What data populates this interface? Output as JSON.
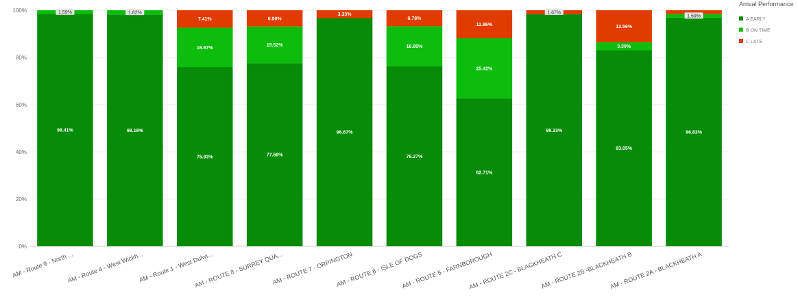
{
  "chart_data": {
    "type": "bar",
    "stacked": true,
    "percent": true,
    "categories": [
      "AM - Route 9 - North ...",
      "AM - Route 4 - West Wickh...",
      "AM - Route 1 - West Dulwi...",
      "AM - ROUTE 8 - SURREY QUA...",
      "AM - ROUTE 7 - ORPINGTON",
      "AM - ROUTE 6 - ISLE OF DOGS",
      "AM - ROUTE 5 - FARNBOROUGH",
      "AM - ROUTE 2C - BLACKHEATH C",
      "AM - ROUTE 2B -BLACKHEATH B",
      "AM - ROUTE 2A - BLACKHEATH A"
    ],
    "series": [
      {
        "name": "A EARLY",
        "color": "#078c07",
        "values": [
          98.41,
          98.18,
          75.93,
          77.59,
          96.67,
          76.27,
          62.71,
          98.33,
          83.05,
          96.83
        ],
        "labels": [
          "98.41%",
          "98.18%",
          "75.93%",
          "77.59%",
          "96.67%",
          "76.27%",
          "62.71%",
          "98.33%",
          "83.05%",
          "96.83%"
        ]
      },
      {
        "name": "B ON TIME",
        "color": "#0dbd0d",
        "values": [
          1.59,
          1.82,
          16.67,
          15.52,
          0,
          16.95,
          25.42,
          0,
          3.39,
          1.59
        ],
        "labels": [
          "1.59%",
          "1.82%",
          "16.67%",
          "15.52%",
          "",
          "16.95%",
          "25.42%",
          "",
          "3.39%",
          "1.59%"
        ]
      },
      {
        "name": "C LATE",
        "color": "#e03c00",
        "values": [
          0,
          0,
          7.41,
          6.9,
          3.33,
          6.78,
          11.86,
          1.67,
          13.56,
          1.59
        ],
        "labels": [
          "",
          "",
          "7.41%",
          "6.90%",
          "3.33%",
          "6.78%",
          "11.86%",
          "1.67%",
          "13.56%",
          ""
        ]
      }
    ],
    "ylim": [
      0,
      100
    ],
    "yticks": [
      "0%",
      "20%",
      "40%",
      "60%",
      "80%",
      "100%"
    ],
    "legend_title": "Arrival Performance",
    "legend_position": "top-right",
    "grid": true
  }
}
